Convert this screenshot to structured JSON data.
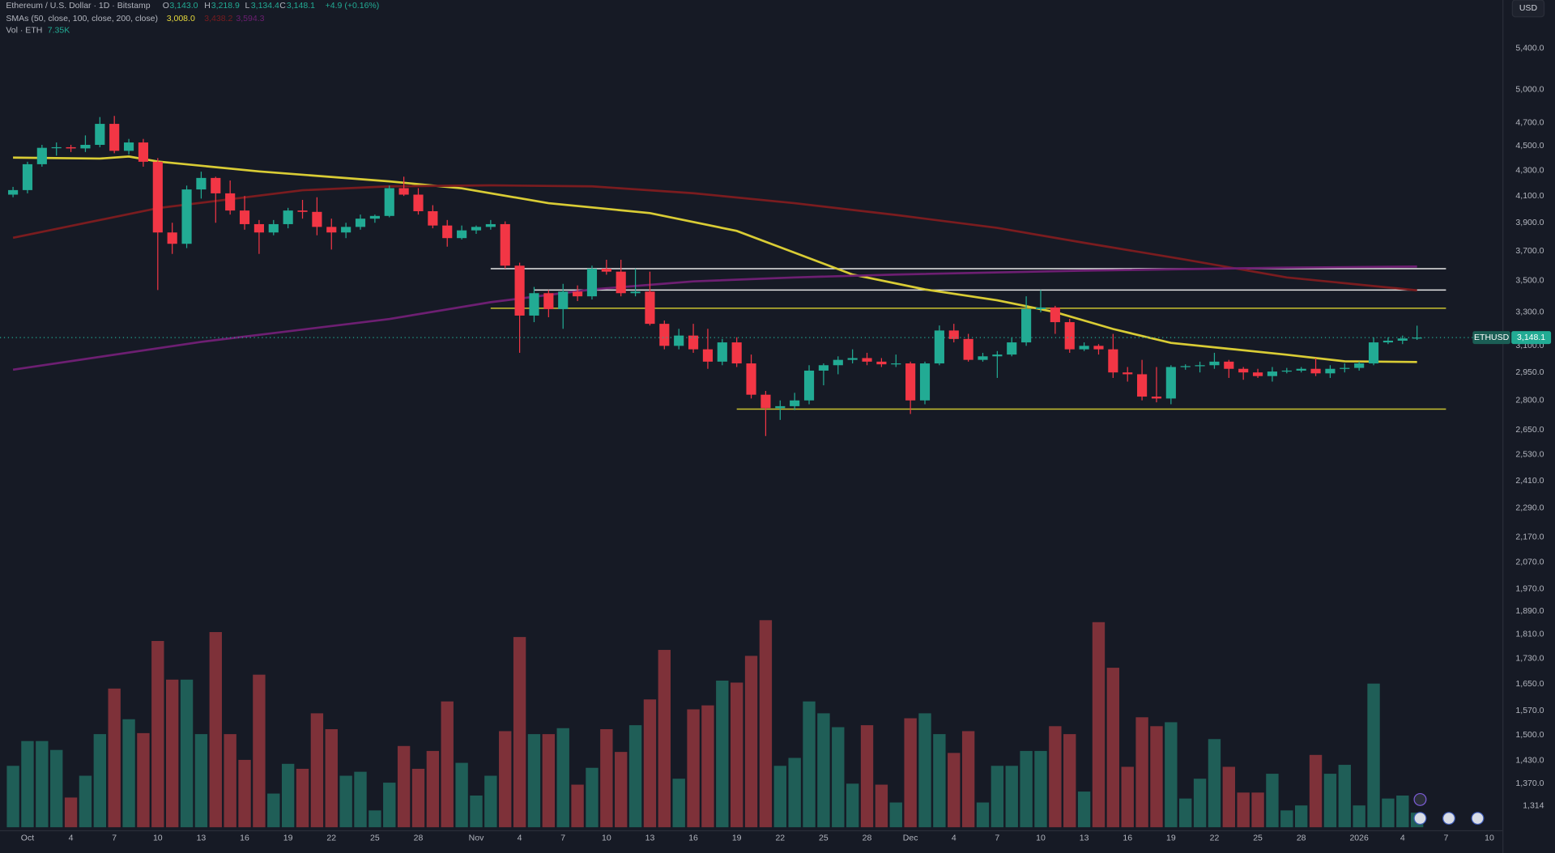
{
  "chart_data": {
    "type": "candlestick",
    "header": {
      "symbol": "Ethereum / U.S. Dollar · 1D · Bitstamp",
      "o": "O",
      "open": "3,143.0",
      "h": "H",
      "high": "3,218.9",
      "l": "L",
      "low": "3,134.4",
      "c": "C",
      "close": "3,148.1",
      "change": "+4.9 (+0.16%)",
      "smas": "SMAs (50, close, 100, close, 200, close)",
      "sma50": "3,008.0",
      "sma100": "3,438.2",
      "sma200": "3,594.3",
      "vol": "Vol · ETH",
      "vol_value": "7.35K",
      "currency": "USD"
    },
    "up_color": "#22ab94",
    "down_color": "#f23645",
    "volume_up_color": "#1f5e57",
    "volume_down_color": "#7e3139",
    "log_scale": true,
    "grid": false,
    "xlim": [
      -0.9,
      102.9
    ],
    "ylim": [
      1256,
      5909
    ],
    "volume_ylim": [
      0,
      125000
    ],
    "xticks": [
      {
        "value": 1,
        "label": "Oct"
      },
      {
        "value": 4,
        "label": "4"
      },
      {
        "value": 7,
        "label": "7"
      },
      {
        "value": 10,
        "label": "10"
      },
      {
        "value": 13,
        "label": "13"
      },
      {
        "value": 16,
        "label": "16"
      },
      {
        "value": 19,
        "label": "19"
      },
      {
        "value": 22,
        "label": "22"
      },
      {
        "value": 25,
        "label": "25"
      },
      {
        "value": 28,
        "label": "28"
      },
      {
        "value": 32,
        "label": "Nov"
      },
      {
        "value": 35,
        "label": "4"
      },
      {
        "value": 38,
        "label": "7"
      },
      {
        "value": 41,
        "label": "10"
      },
      {
        "value": 44,
        "label": "13"
      },
      {
        "value": 47,
        "label": "16"
      },
      {
        "value": 50,
        "label": "19"
      },
      {
        "value": 53,
        "label": "22"
      },
      {
        "value": 56,
        "label": "25"
      },
      {
        "value": 59,
        "label": "28"
      },
      {
        "value": 62,
        "label": "Dec"
      },
      {
        "value": 65,
        "label": "4"
      },
      {
        "value": 68,
        "label": "7"
      },
      {
        "value": 71,
        "label": "10"
      },
      {
        "value": 74,
        "label": "13"
      },
      {
        "value": 77,
        "label": "16"
      },
      {
        "value": 80,
        "label": "19"
      },
      {
        "value": 83,
        "label": "22"
      },
      {
        "value": 86,
        "label": "25"
      },
      {
        "value": 89,
        "label": "28"
      },
      {
        "value": 93,
        "label": "2026"
      },
      {
        "value": 96,
        "label": "4"
      },
      {
        "value": 99,
        "label": "7"
      },
      {
        "value": 102,
        "label": "10"
      }
    ],
    "yticks": [
      {
        "value": 5400,
        "label": "5,400.0"
      },
      {
        "value": 5000,
        "label": "5,000.0"
      },
      {
        "value": 4700,
        "label": "4,700.0"
      },
      {
        "value": 4500,
        "label": "4,500.0"
      },
      {
        "value": 4300,
        "label": "4,300.0"
      },
      {
        "value": 4100,
        "label": "4,100.0"
      },
      {
        "value": 3900,
        "label": "3,900.0"
      },
      {
        "value": 3700,
        "label": "3,700.0"
      },
      {
        "value": 3500,
        "label": "3,500.0"
      },
      {
        "value": 3300,
        "label": "3,300.0"
      },
      {
        "value": 3100,
        "label": "3,100.0"
      },
      {
        "value": 2950,
        "label": "2,950.0"
      },
      {
        "value": 2800,
        "label": "2,800.0"
      },
      {
        "value": 2650,
        "label": "2,650.0"
      },
      {
        "value": 2530,
        "label": "2,530.0"
      },
      {
        "value": 2410,
        "label": "2,410.0"
      },
      {
        "value": 2290,
        "label": "2,290.0"
      },
      {
        "value": 2170,
        "label": "2,170.0"
      },
      {
        "value": 2070,
        "label": "2,070.0"
      },
      {
        "value": 1970,
        "label": "1,970.0"
      },
      {
        "value": 1890,
        "label": "1,890.0"
      },
      {
        "value": 1810,
        "label": "1,810.0"
      },
      {
        "value": 1730,
        "label": "1,730.0"
      },
      {
        "value": 1650,
        "label": "1,650.0"
      },
      {
        "value": 1570,
        "label": "1,570.0"
      },
      {
        "value": 1500,
        "label": "1,500.0"
      },
      {
        "value": 1430,
        "label": "1,430.0"
      },
      {
        "value": 1370,
        "label": "1,370.0"
      },
      {
        "value": 1314,
        "label": "1,314"
      }
    ],
    "candles": [
      [
        4110,
        4170,
        4090,
        4145
      ],
      [
        4145,
        4370,
        4120,
        4350
      ],
      [
        4350,
        4510,
        4330,
        4485
      ],
      [
        4485,
        4530,
        4420,
        4490
      ],
      [
        4490,
        4510,
        4450,
        4480
      ],
      [
        4480,
        4590,
        4450,
        4510
      ],
      [
        4510,
        4750,
        4490,
        4690
      ],
      [
        4690,
        4760,
        4440,
        4460
      ],
      [
        4460,
        4560,
        4430,
        4530
      ],
      [
        4530,
        4560,
        4330,
        4370
      ],
      [
        4370,
        4400,
        3440,
        3830
      ],
      [
        3830,
        3900,
        3680,
        3750
      ],
      [
        3750,
        4180,
        3720,
        4150
      ],
      [
        4150,
        4290,
        4080,
        4240
      ],
      [
        4240,
        4250,
        3900,
        4120
      ],
      [
        4120,
        4220,
        3960,
        3990
      ],
      [
        3990,
        4100,
        3850,
        3890
      ],
      [
        3890,
        3920,
        3680,
        3830
      ],
      [
        3830,
        3920,
        3810,
        3890
      ],
      [
        3890,
        4010,
        3860,
        3990
      ],
      [
        3990,
        4070,
        3930,
        3980
      ],
      [
        3980,
        4090,
        3810,
        3870
      ],
      [
        3870,
        3930,
        3710,
        3830
      ],
      [
        3830,
        3900,
        3790,
        3870
      ],
      [
        3870,
        3960,
        3850,
        3930
      ],
      [
        3930,
        3960,
        3900,
        3950
      ],
      [
        3950,
        4180,
        3940,
        4160
      ],
      [
        4160,
        4250,
        4100,
        4110
      ],
      [
        4110,
        4160,
        3960,
        3985
      ],
      [
        3985,
        4030,
        3860,
        3880
      ],
      [
        3880,
        3920,
        3730,
        3790
      ],
      [
        3790,
        3880,
        3780,
        3845
      ],
      [
        3845,
        3880,
        3820,
        3870
      ],
      [
        3870,
        3920,
        3850,
        3890
      ],
      [
        3890,
        3910,
        3580,
        3600
      ],
      [
        3600,
        3620,
        3060,
        3280
      ],
      [
        3280,
        3460,
        3240,
        3420
      ],
      [
        3420,
        3440,
        3270,
        3320
      ],
      [
        3320,
        3480,
        3200,
        3430
      ],
      [
        3430,
        3470,
        3370,
        3400
      ],
      [
        3400,
        3600,
        3380,
        3580
      ],
      [
        3580,
        3640,
        3540,
        3560
      ],
      [
        3560,
        3640,
        3400,
        3420
      ],
      [
        3420,
        3580,
        3400,
        3430
      ],
      [
        3430,
        3560,
        3220,
        3230
      ],
      [
        3230,
        3250,
        3080,
        3100
      ],
      [
        3100,
        3200,
        3080,
        3160
      ],
      [
        3160,
        3230,
        3060,
        3080
      ],
      [
        3080,
        3200,
        2970,
        3010
      ],
      [
        3010,
        3140,
        2990,
        3120
      ],
      [
        3120,
        3150,
        2980,
        3000
      ],
      [
        3000,
        3050,
        2810,
        2830
      ],
      [
        2830,
        2850,
        2620,
        2760
      ],
      [
        2760,
        2800,
        2700,
        2770
      ],
      [
        2770,
        2840,
        2750,
        2800
      ],
      [
        2800,
        2990,
        2780,
        2960
      ],
      [
        2960,
        3000,
        2880,
        2990
      ],
      [
        2990,
        3040,
        2940,
        3020
      ],
      [
        3020,
        3080,
        3000,
        3030
      ],
      [
        3030,
        3060,
        2990,
        3010
      ],
      [
        3010,
        3030,
        2980,
        2995
      ],
      [
        2995,
        3050,
        2980,
        3000
      ],
      [
        3000,
        3010,
        2730,
        2800
      ],
      [
        2800,
        3010,
        2780,
        3000
      ],
      [
        3000,
        3220,
        2990,
        3190
      ],
      [
        3190,
        3230,
        3120,
        3140
      ],
      [
        3140,
        3170,
        3010,
        3020
      ],
      [
        3020,
        3060,
        3010,
        3040
      ],
      [
        3040,
        3070,
        2920,
        3050
      ],
      [
        3050,
        3150,
        3040,
        3120
      ],
      [
        3120,
        3400,
        3100,
        3320
      ],
      [
        3320,
        3440,
        3300,
        3330
      ],
      [
        3330,
        3340,
        3170,
        3240
      ],
      [
        3240,
        3260,
        3060,
        3080
      ],
      [
        3080,
        3120,
        3070,
        3100
      ],
      [
        3100,
        3110,
        3050,
        3080
      ],
      [
        3080,
        3170,
        2920,
        2950
      ],
      [
        2950,
        2980,
        2900,
        2940
      ],
      [
        2940,
        3020,
        2800,
        2820
      ],
      [
        2820,
        2980,
        2790,
        2810
      ],
      [
        2810,
        2990,
        2780,
        2980
      ],
      [
        2980,
        2995,
        2965,
        2985
      ],
      [
        2985,
        3010,
        2950,
        2990
      ],
      [
        2990,
        3060,
        2970,
        3010
      ],
      [
        3010,
        3020,
        2920,
        2970
      ],
      [
        2970,
        2980,
        2910,
        2950
      ],
      [
        2950,
        2970,
        2920,
        2930
      ],
      [
        2930,
        2980,
        2900,
        2955
      ],
      [
        2955,
        2975,
        2945,
        2960
      ],
      [
        2960,
        2980,
        2950,
        2970
      ],
      [
        2970,
        3030,
        2930,
        2945
      ],
      [
        2945,
        2990,
        2920,
        2970
      ],
      [
        2970,
        3000,
        2950,
        2975
      ],
      [
        2975,
        3010,
        2960,
        3000
      ],
      [
        3000,
        3150,
        2990,
        3120
      ],
      [
        3120,
        3150,
        3110,
        3130
      ],
      [
        3130,
        3160,
        3110,
        3143
      ],
      [
        3143,
        3218.9,
        3134.4,
        3148.1
      ]
    ],
    "volume": [
      31000,
      43500,
      43500,
      39000,
      15000,
      26000,
      47000,
      70000,
      54500,
      47500,
      94000,
      74500,
      74500,
      47000,
      98500,
      47000,
      34000,
      77000,
      17000,
      32000,
      29500,
      57500,
      49500,
      26000,
      28000,
      8500,
      22500,
      41000,
      29500,
      38500,
      63500,
      32500,
      16000,
      26000,
      48500,
      96000,
      47000,
      47000,
      50000,
      21500,
      30000,
      49500,
      38000,
      51500,
      64500,
      89500,
      24500,
      59500,
      61500,
      74000,
      73000,
      86500,
      104500,
      31000,
      35000,
      63500,
      57500,
      50500,
      22000,
      51500,
      21500,
      12500,
      55000,
      57500,
      47000,
      37500,
      48500,
      12500,
      31000,
      31000,
      38500,
      38500,
      51000,
      47000,
      18000,
      103500,
      80500,
      30500,
      55500,
      51000,
      53000,
      14500,
      24500,
      44500,
      30500,
      17500,
      17500,
      27000,
      8500,
      11000,
      36500,
      27000,
      31500,
      11000,
      72500,
      14500,
      16000,
      7350
    ],
    "series": [
      {
        "color": "#d9cc35",
        "x": [
          0,
          6,
          8,
          10,
          17,
          26,
          31,
          37,
          44,
          50,
          54,
          58,
          63,
          68,
          72,
          76,
          80,
          84,
          88,
          92,
          97
        ],
        "values": [
          4404,
          4396,
          4413,
          4372,
          4292,
          4213,
          4159,
          4045,
          3971,
          3841,
          3688,
          3541,
          3444,
          3375,
          3301,
          3199,
          3117,
          3083,
          3049,
          3012,
          3008
        ]
      },
      {
        "color": "#7a1c1f",
        "x": [
          0,
          10,
          20,
          26,
          33,
          40,
          47,
          54,
          61,
          68,
          74,
          81,
          88,
          97
        ],
        "values": [
          3792,
          4008,
          4144,
          4174,
          4182,
          4174,
          4121,
          4045,
          3957,
          3863,
          3757,
          3641,
          3522,
          3438
        ]
      },
      {
        "color": "#6d1f72",
        "x": [
          0,
          13,
          26,
          33,
          40,
          47,
          54,
          61,
          74,
          88,
          97
        ],
        "values": [
          2965,
          3123,
          3259,
          3363,
          3444,
          3496,
          3522,
          3541,
          3567,
          3587,
          3594
        ]
      }
    ],
    "levels": [
      {
        "value": 3580,
        "from": 33,
        "to": 99,
        "color": "#e6e6e6"
      },
      {
        "value": 3440,
        "from": 36,
        "to": 99,
        "color": "#e6e6e6"
      },
      {
        "value": 3325,
        "from": 33,
        "to": 99,
        "color": "#c9c230"
      },
      {
        "value": 2755,
        "from": 50,
        "to": 99,
        "color": "#c9c230"
      }
    ],
    "price_tag": {
      "symbol": "ETHUSD",
      "value": 3148.1,
      "label": "3,148.1"
    }
  }
}
